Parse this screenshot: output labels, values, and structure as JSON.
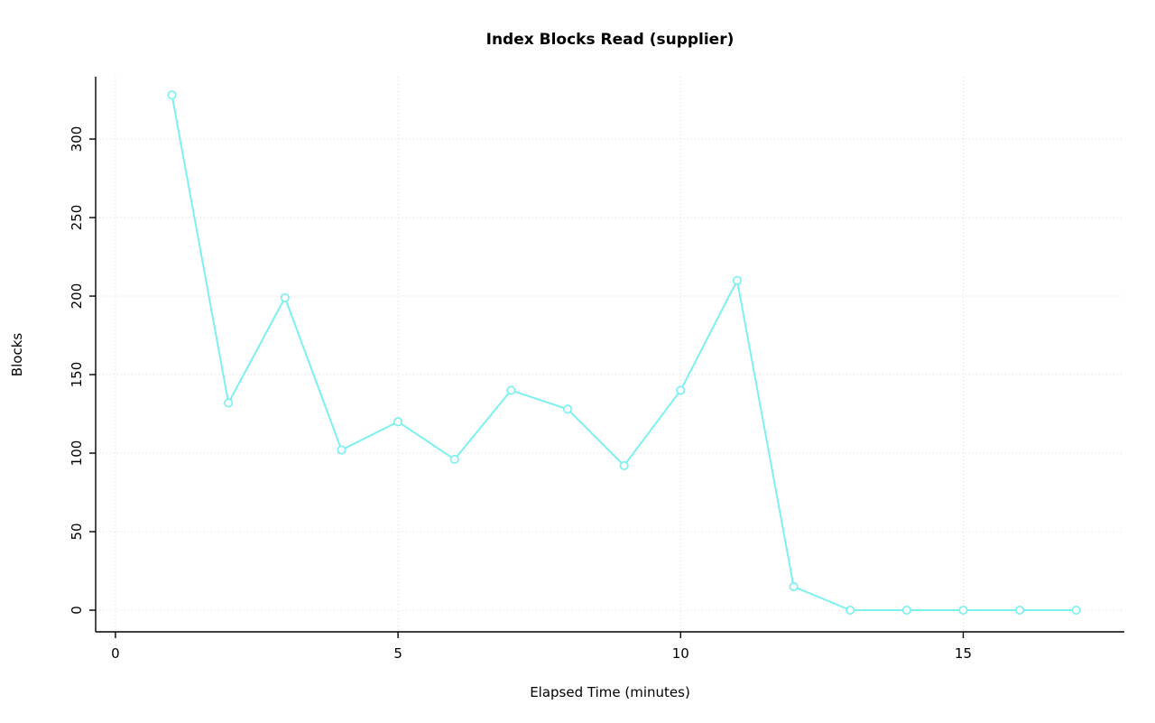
{
  "page": {
    "background": "#ffffff"
  },
  "chart_data": {
    "type": "line",
    "title": "Index Blocks Read (supplier)",
    "xlabel": "Elapsed Time (minutes)",
    "ylabel": "Blocks",
    "x": [
      1,
      2,
      3,
      4,
      5,
      6,
      7,
      8,
      9,
      10,
      11,
      12,
      13,
      14,
      15,
      16,
      17
    ],
    "y": [
      328,
      132,
      199,
      102,
      120,
      96,
      140,
      128,
      92,
      140,
      210,
      15,
      0,
      0,
      0,
      0,
      0
    ],
    "xticks": [
      0,
      5,
      10,
      15
    ],
    "yticks": [
      0,
      50,
      100,
      150,
      200,
      250,
      300
    ],
    "xlim": [
      0,
      17.5
    ],
    "ylim": [
      0,
      330
    ],
    "grid": true,
    "legend": "none",
    "marker": "open-circle",
    "line_color": "#7DF0F0",
    "grid_color": "#d9d9d9",
    "axis_color": "#000000",
    "text_color": "#000000"
  }
}
